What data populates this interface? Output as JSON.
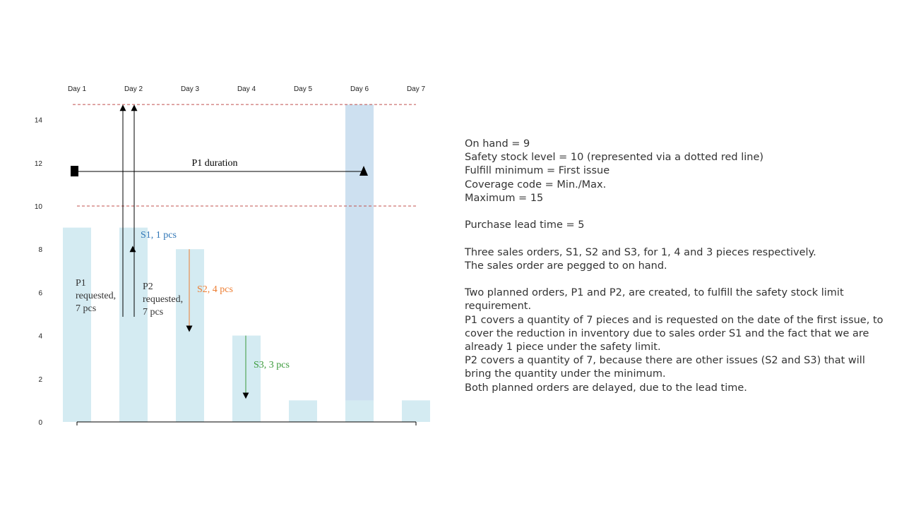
{
  "chart_data": {
    "type": "bar",
    "categories": [
      "Day 1",
      "Day 2",
      "Day 3",
      "Day 4",
      "Day 5",
      "Day 6",
      "Day 7"
    ],
    "series": [
      {
        "values": [
          9,
          9,
          8,
          4,
          1,
          1,
          1
        ],
        "color": "#d4ebf2"
      },
      {
        "values": [
          0,
          0,
          0,
          0,
          0,
          14.7,
          0
        ],
        "color": "#cde0f0"
      }
    ],
    "yticks": [
      0,
      2,
      4,
      6,
      8,
      10,
      12,
      14
    ],
    "ylim": [
      0,
      14.7
    ],
    "reference_lines": [
      {
        "value": 10,
        "style": "dashed",
        "color": "#c0504d"
      },
      {
        "value": 14.7,
        "style": "dashed",
        "color": "#c0504d"
      }
    ],
    "annotations": {
      "p1_duration": {
        "label": "P1 duration",
        "from": "Day 1",
        "to": "Day 6",
        "value": 11.6
      },
      "p1_requested": {
        "lines": [
          "P1",
          "requested,",
          "7 pcs"
        ],
        "color": "#333333"
      },
      "p2_requested": {
        "lines": [
          "P2",
          "requested,",
          "7 pcs"
        ],
        "color": "#333333"
      },
      "s1": {
        "label": "S1, 1 pcs",
        "color": "#2e75b6",
        "from": 14.7,
        "to": 8
      },
      "s2": {
        "label": "S2, 4 pcs",
        "color": "#ed7d31",
        "from": 8,
        "to": 4
      },
      "s3": {
        "label": "S3, 3 pcs",
        "color": "#3a9a3a",
        "from": 4,
        "to": 1
      }
    }
  },
  "notes": [
    "On hand = 9",
    "Safety stock level = 10 (represented via a dotted red line)",
    "Fulfill minimum = First issue",
    "Coverage code = Min./Max.",
    "Maximum = 15",
    "",
    "Purchase lead time = 5",
    "",
    "Three sales orders, S1, S2 and S3, for 1, 4 and 3 pieces respectively.",
    "The sales order are pegged to on hand.",
    "",
    "Two planned orders, P1 and P2, are created, to fulfill the safety stock limit requirement.",
    "P1 covers a quantity of 7 pieces and is requested on the date of the first issue, to cover the reduction in inventory due to sales order S1 and the fact that we are already 1 piece under the safety limit.",
    "P2 covers a quantity of 7, because there are other issues (S2 and S3) that will bring the quantity under the minimum.",
    "Both planned orders are delayed, due to the lead time."
  ]
}
